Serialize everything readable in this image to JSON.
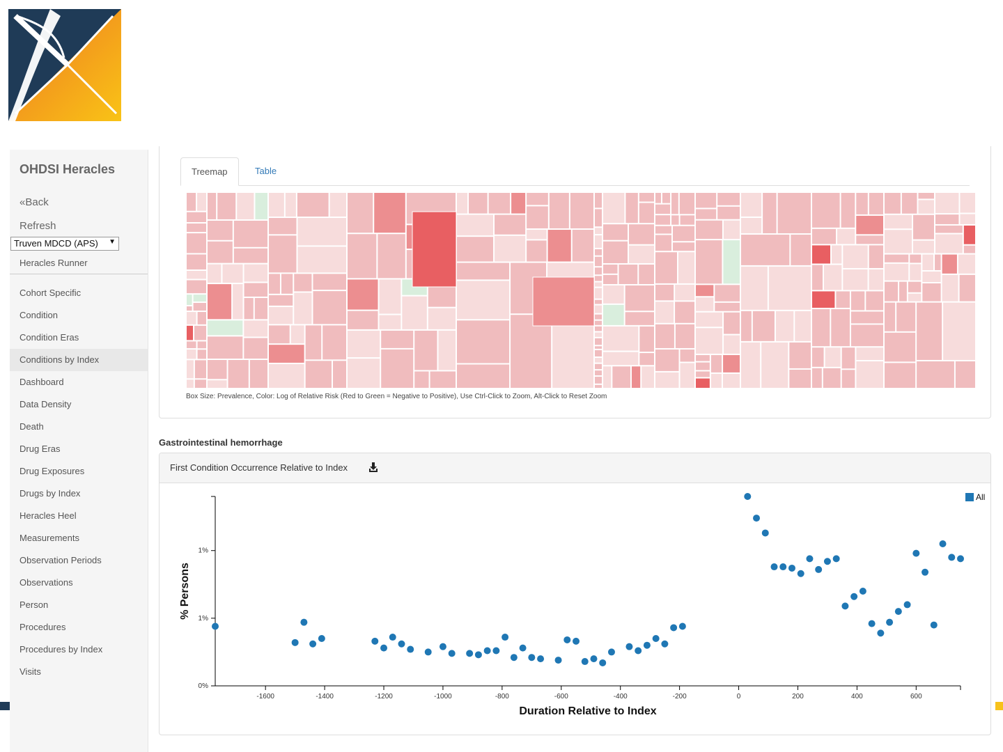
{
  "app": {
    "brand": "OHDSI Heracles",
    "back_label": "«Back",
    "refresh_label": "Refresh",
    "datasource_selected": "Truven MDCD (APS)",
    "runner_label": "Heracles Runner",
    "logo_icon": "ohdsi-logo-icon"
  },
  "nav": {
    "items": [
      "Cohort Specific",
      "Condition",
      "Condition Eras",
      "Conditions by Index",
      "Dashboard",
      "Data Density",
      "Death",
      "Drug Eras",
      "Drug Exposures",
      "Drugs by Index",
      "Heracles Heel",
      "Measurements",
      "Observation Periods",
      "Observations",
      "Person",
      "Procedures",
      "Procedures by Index",
      "Visits"
    ],
    "active": "Conditions by Index"
  },
  "tabs": {
    "treemap": "Treemap",
    "table": "Table",
    "active": "Treemap"
  },
  "treemap": {
    "note": "Box Size: Prevalence, Color: Log of Relative Risk (Red to Green = Negative to Positive), Use Ctrl-Click to Zoom, Alt-Click to Reset Zoom",
    "colors": {
      "light": "#f7dcdc",
      "medium": "#f0bcbe",
      "strong": "#ec8e90",
      "strongest": "#e85f62",
      "green": "#d9eedd",
      "gap": "#ffffff"
    }
  },
  "concept_title": "Gastrointestinal hemorrhage",
  "chart_panel": {
    "title": "First Condition Occurrence Relative to Index",
    "download_icon": "download-icon"
  },
  "chart_data": {
    "type": "scatter",
    "xlabel": "Duration Relative to Index",
    "ylabel": "% Persons",
    "x_ticks": [
      -1600,
      -1400,
      -1200,
      -1000,
      -800,
      -600,
      -400,
      -200,
      0,
      200,
      400,
      600
    ],
    "y_ticks": [
      {
        "label": "0%",
        "value": 0
      },
      {
        "label": "1%",
        "value": 0.5
      },
      {
        "label": "1%",
        "value": 1.0
      }
    ],
    "xlim": [
      -1770,
      750
    ],
    "ylim": [
      0,
      1.4
    ],
    "legend": "top-right",
    "color": "#1f77b4",
    "series": [
      {
        "name": "All",
        "points": [
          [
            -1770,
            0.44
          ],
          [
            -1500,
            0.32
          ],
          [
            -1470,
            0.47
          ],
          [
            -1440,
            0.31
          ],
          [
            -1410,
            0.35
          ],
          [
            -1230,
            0.33
          ],
          [
            -1200,
            0.28
          ],
          [
            -1170,
            0.36
          ],
          [
            -1140,
            0.31
          ],
          [
            -1110,
            0.27
          ],
          [
            -1050,
            0.25
          ],
          [
            -1000,
            0.29
          ],
          [
            -970,
            0.24
          ],
          [
            -910,
            0.24
          ],
          [
            -880,
            0.23
          ],
          [
            -850,
            0.26
          ],
          [
            -820,
            0.26
          ],
          [
            -790,
            0.36
          ],
          [
            -760,
            0.21
          ],
          [
            -730,
            0.28
          ],
          [
            -700,
            0.21
          ],
          [
            -670,
            0.2
          ],
          [
            -610,
            0.19
          ],
          [
            -580,
            0.34
          ],
          [
            -550,
            0.33
          ],
          [
            -520,
            0.18
          ],
          [
            -490,
            0.2
          ],
          [
            -460,
            0.17
          ],
          [
            -430,
            0.25
          ],
          [
            -370,
            0.29
          ],
          [
            -340,
            0.26
          ],
          [
            -310,
            0.3
          ],
          [
            -280,
            0.35
          ],
          [
            -250,
            0.31
          ],
          [
            -220,
            0.43
          ],
          [
            -190,
            0.44
          ],
          [
            30,
            1.4
          ],
          [
            60,
            1.24
          ],
          [
            90,
            1.13
          ],
          [
            120,
            0.88
          ],
          [
            150,
            0.88
          ],
          [
            180,
            0.87
          ],
          [
            210,
            0.83
          ],
          [
            240,
            0.94
          ],
          [
            270,
            0.86
          ],
          [
            300,
            0.92
          ],
          [
            330,
            0.94
          ],
          [
            360,
            0.59
          ],
          [
            390,
            0.66
          ],
          [
            420,
            0.7
          ],
          [
            450,
            0.46
          ],
          [
            480,
            0.39
          ],
          [
            510,
            0.47
          ],
          [
            540,
            0.55
          ],
          [
            570,
            0.6
          ],
          [
            600,
            0.98
          ],
          [
            630,
            0.84
          ],
          [
            660,
            0.45
          ],
          [
            690,
            1.05
          ],
          [
            720,
            0.95
          ],
          [
            750,
            0.94
          ]
        ]
      }
    ]
  }
}
